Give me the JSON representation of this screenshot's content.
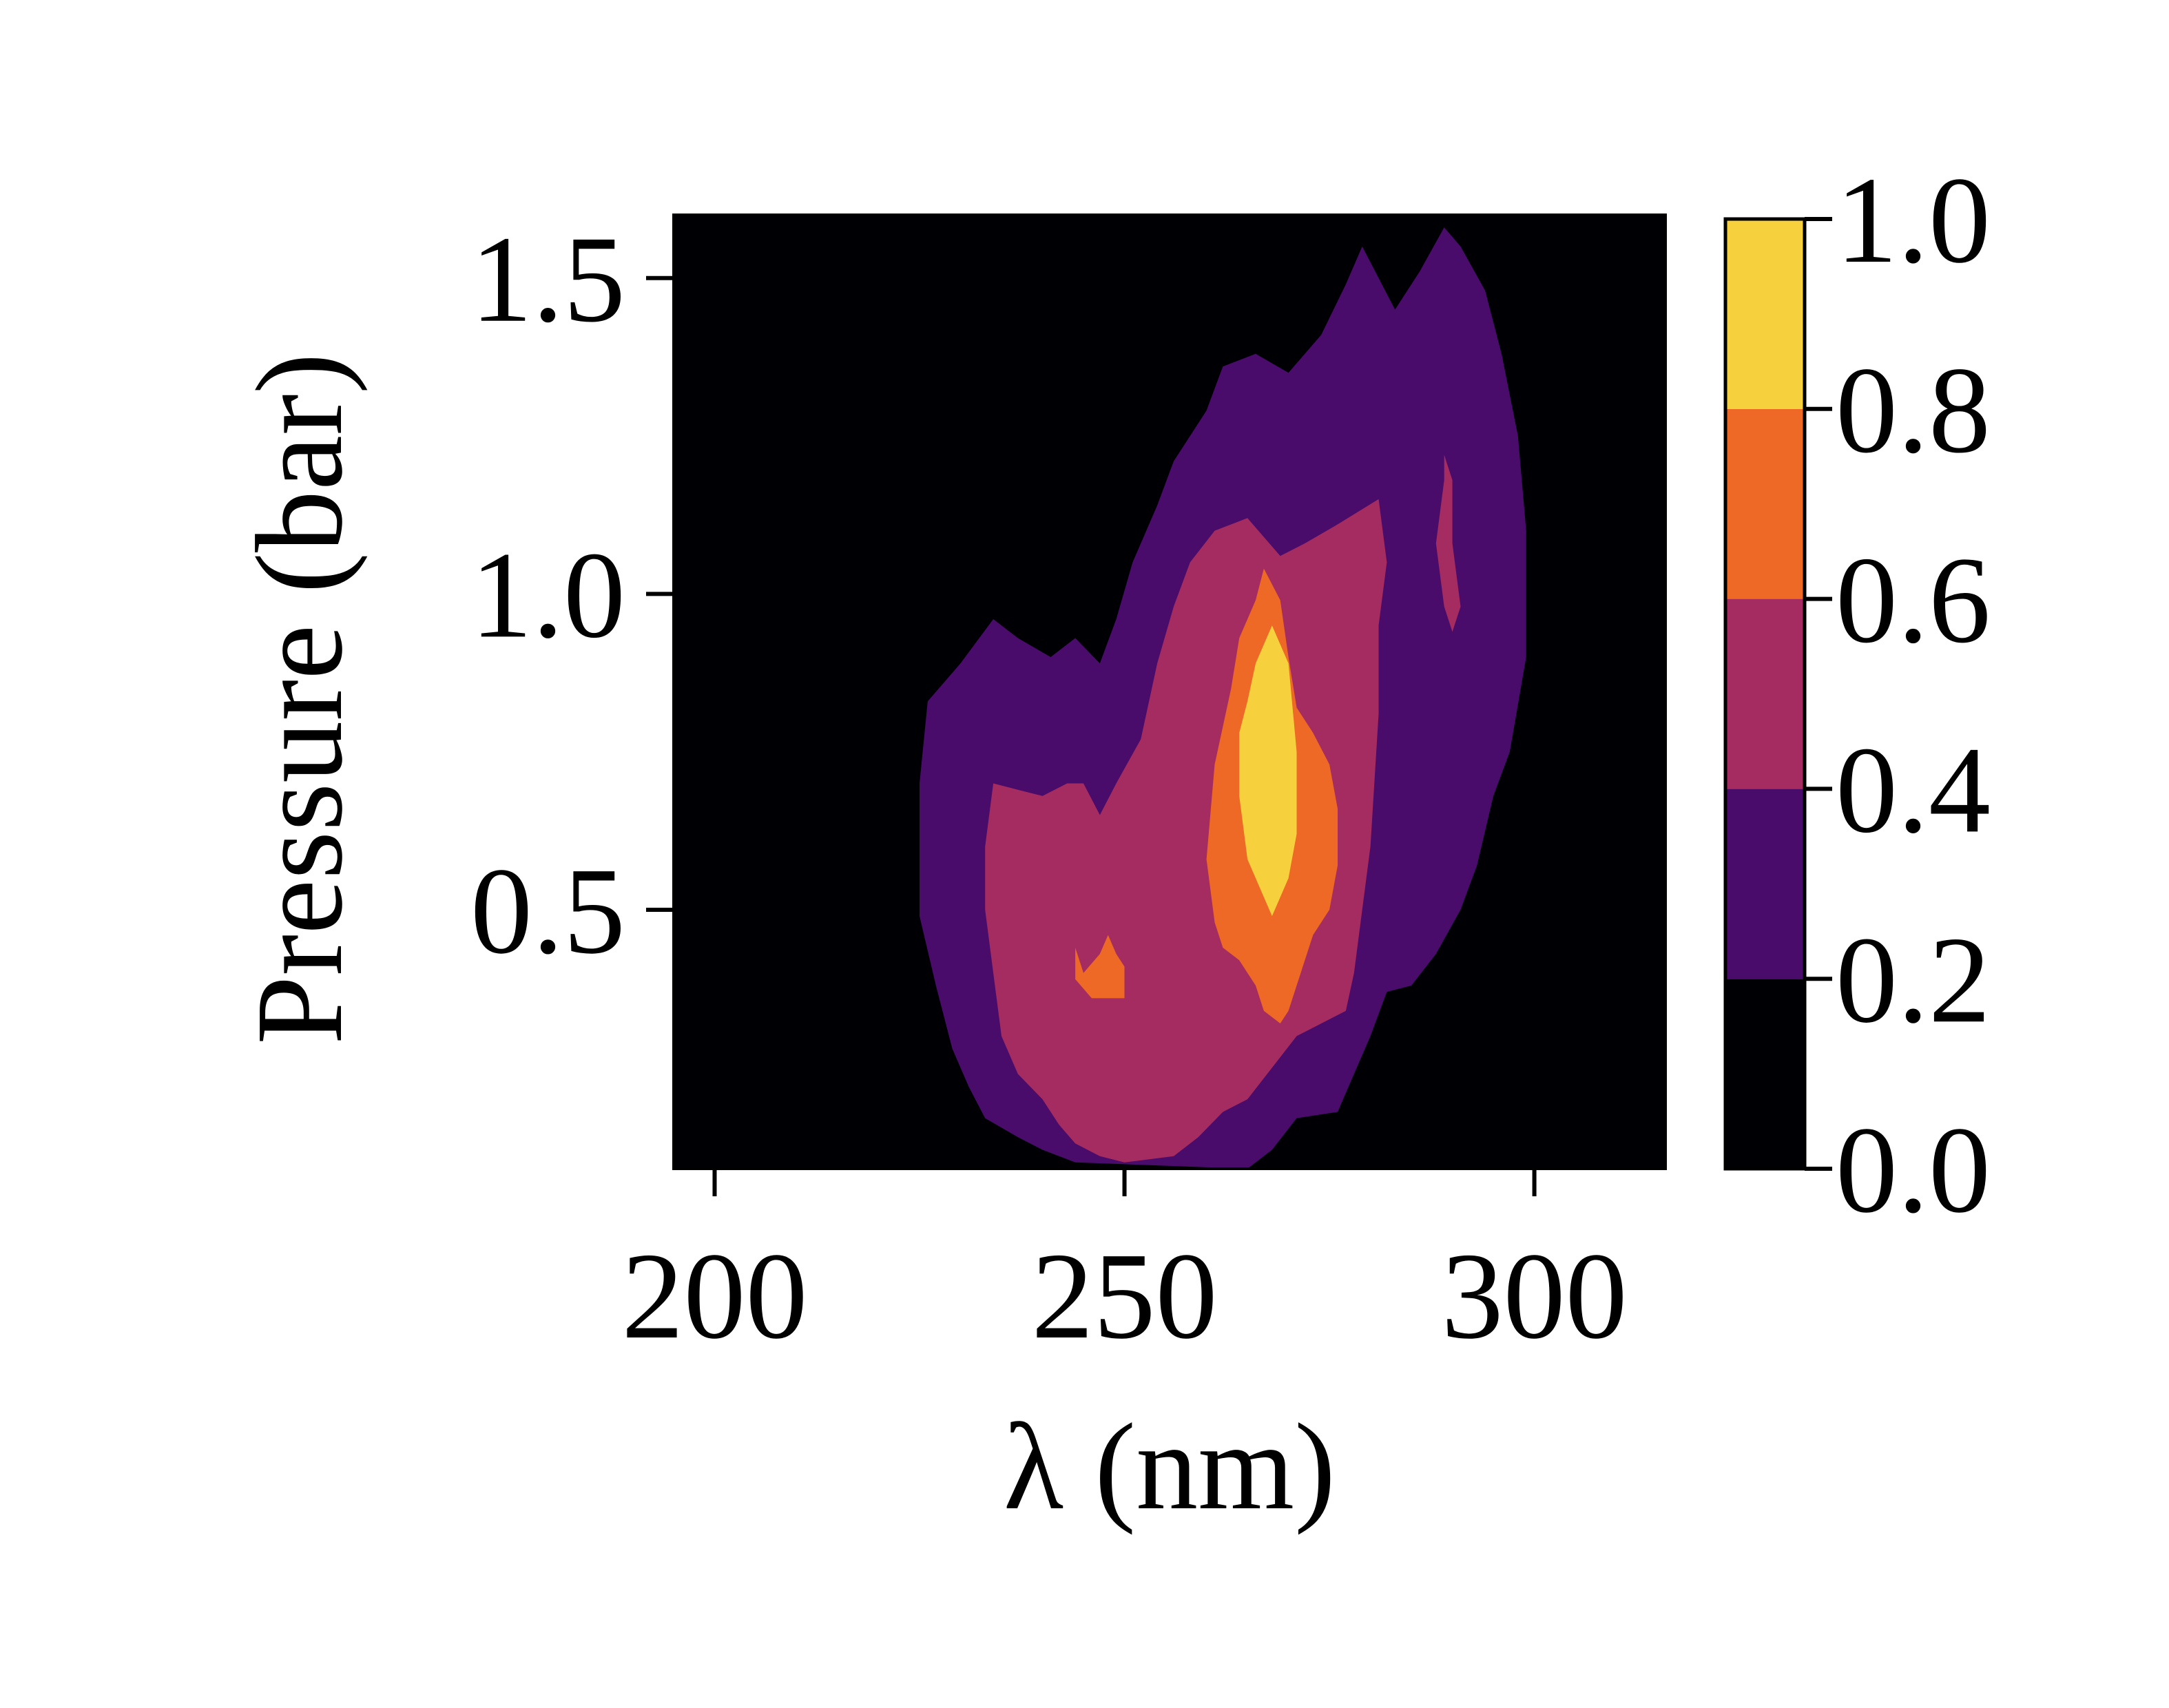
{
  "chart_data": {
    "type": "heatmap",
    "subtype": "filled-contour",
    "xlabel": "λ (nm)",
    "ylabel": "Pressure (bar)",
    "xlim": [
      195,
      316
    ],
    "ylim": [
      0.09,
      1.6
    ],
    "xticks": [
      200,
      250,
      300
    ],
    "xtick_labels": [
      "200",
      "250",
      "300"
    ],
    "yticks": [
      0.5,
      1.0,
      1.5
    ],
    "ytick_labels": [
      "0.5",
      "1.0",
      "1.5"
    ],
    "grid": false,
    "colormap": "inferno",
    "colorbar": {
      "levels": [
        0.0,
        0.2,
        0.4,
        0.6,
        0.8,
        1.0
      ],
      "tick_labels": [
        "0.0",
        "0.2",
        "0.4",
        "0.6",
        "0.8",
        "1.0"
      ],
      "colors": [
        "#000004",
        "#4a0c6b",
        "#a52c60",
        "#ed6925",
        "#f7d13d"
      ]
    },
    "contour_regions": [
      {
        "level_min": 0.2,
        "level_max": 0.4,
        "color": "#4a0c6b",
        "outline": [
          [
            226,
            0.83
          ],
          [
            230,
            0.89
          ],
          [
            234,
            0.96
          ],
          [
            237,
            0.93
          ],
          [
            241,
            0.9
          ],
          [
            244,
            0.93
          ],
          [
            247,
            0.89
          ],
          [
            249,
            0.96
          ],
          [
            251,
            1.05
          ],
          [
            254,
            1.14
          ],
          [
            256,
            1.21
          ],
          [
            258,
            1.25
          ],
          [
            260,
            1.29
          ],
          [
            262,
            1.36
          ],
          [
            266,
            1.38
          ],
          [
            270,
            1.35
          ],
          [
            274,
            1.41
          ],
          [
            277,
            1.49
          ],
          [
            279,
            1.55
          ],
          [
            281,
            1.5
          ],
          [
            283,
            1.45
          ],
          [
            286,
            1.51
          ],
          [
            289,
            1.58
          ],
          [
            291,
            1.55
          ],
          [
            294,
            1.48
          ],
          [
            296,
            1.38
          ],
          [
            298,
            1.25
          ],
          [
            299,
            1.1
          ],
          [
            299,
            0.9
          ],
          [
            297,
            0.75
          ],
          [
            295,
            0.68
          ],
          [
            293,
            0.57
          ],
          [
            291,
            0.5
          ],
          [
            288,
            0.43
          ],
          [
            285,
            0.38
          ],
          [
            282,
            0.37
          ],
          [
            280,
            0.3
          ],
          [
            276,
            0.18
          ],
          [
            271,
            0.17
          ],
          [
            268,
            0.12
          ],
          [
            265,
            0.09
          ],
          [
            244,
            0.1
          ],
          [
            240,
            0.12
          ],
          [
            237,
            0.14
          ],
          [
            233,
            0.17
          ],
          [
            231,
            0.22
          ],
          [
            229,
            0.28
          ],
          [
            227,
            0.38
          ],
          [
            225,
            0.49
          ],
          [
            225,
            0.6
          ],
          [
            225,
            0.7
          ]
        ]
      },
      {
        "level_min": 0.4,
        "level_max": 0.6,
        "color": "#a52c60",
        "outline": [
          [
            234,
            0.7
          ],
          [
            237,
            0.69
          ],
          [
            240,
            0.68
          ],
          [
            243,
            0.7
          ],
          [
            245,
            0.7
          ],
          [
            247,
            0.65
          ],
          [
            249,
            0.7
          ],
          [
            252,
            0.77
          ],
          [
            254,
            0.89
          ],
          [
            256,
            0.98
          ],
          [
            258,
            1.05
          ],
          [
            261,
            1.1
          ],
          [
            265,
            1.12
          ],
          [
            269,
            1.06
          ],
          [
            272,
            1.08
          ],
          [
            276,
            1.11
          ],
          [
            281,
            1.15
          ],
          [
            282,
            1.05
          ],
          [
            281,
            0.95
          ],
          [
            281,
            0.81
          ],
          [
            280,
            0.6
          ],
          [
            279,
            0.5
          ],
          [
            278,
            0.4
          ],
          [
            277,
            0.34
          ],
          [
            271,
            0.3
          ],
          [
            265,
            0.2
          ],
          [
            262,
            0.18
          ],
          [
            259,
            0.14
          ],
          [
            256,
            0.11
          ],
          [
            250,
            0.1
          ],
          [
            247,
            0.11
          ],
          [
            244,
            0.13
          ],
          [
            242,
            0.16
          ],
          [
            240,
            0.2
          ],
          [
            237,
            0.24
          ],
          [
            235,
            0.3
          ],
          [
            234,
            0.4
          ],
          [
            233,
            0.5
          ],
          [
            233,
            0.6
          ]
        ]
      },
      {
        "level_min": 0.4,
        "level_max": 0.6,
        "color": "#a52c60",
        "outline": [
          [
            289,
            1.22
          ],
          [
            290,
            1.18
          ],
          [
            290,
            1.08
          ],
          [
            291,
            0.98
          ],
          [
            290,
            0.94
          ],
          [
            289,
            0.98
          ],
          [
            288,
            1.08
          ],
          [
            289,
            1.18
          ]
        ]
      },
      {
        "level_min": 0.6,
        "level_max": 0.8,
        "color": "#ed6925",
        "outline": [
          [
            261,
            0.73
          ],
          [
            263,
            0.85
          ],
          [
            264,
            0.93
          ],
          [
            266,
            0.99
          ],
          [
            267,
            1.04
          ],
          [
            269,
            0.99
          ],
          [
            270,
            0.9
          ],
          [
            271,
            0.82
          ],
          [
            273,
            0.78
          ],
          [
            275,
            0.73
          ],
          [
            276,
            0.66
          ],
          [
            276,
            0.57
          ],
          [
            275,
            0.5
          ],
          [
            273,
            0.46
          ],
          [
            271,
            0.38
          ],
          [
            270,
            0.34
          ],
          [
            269,
            0.32
          ],
          [
            267,
            0.34
          ],
          [
            266,
            0.38
          ],
          [
            264,
            0.42
          ],
          [
            262,
            0.44
          ],
          [
            261,
            0.48
          ],
          [
            260,
            0.58
          ]
        ]
      },
      {
        "level_min": 0.6,
        "level_max": 0.8,
        "color": "#ed6925",
        "outline": [
          [
            244,
            0.44
          ],
          [
            245,
            0.4
          ],
          [
            247,
            0.43
          ],
          [
            248,
            0.46
          ],
          [
            249,
            0.43
          ],
          [
            250,
            0.41
          ],
          [
            250,
            0.36
          ],
          [
            246,
            0.36
          ],
          [
            244,
            0.39
          ]
        ]
      },
      {
        "level_min": 0.8,
        "level_max": 1.0,
        "color": "#f7d13d",
        "outline": [
          [
            265,
            0.83
          ],
          [
            266,
            0.89
          ],
          [
            268,
            0.95
          ],
          [
            270,
            0.89
          ],
          [
            271,
            0.75
          ],
          [
            271,
            0.62
          ],
          [
            270,
            0.55
          ],
          [
            268,
            0.49
          ],
          [
            267,
            0.52
          ],
          [
            265,
            0.58
          ],
          [
            264,
            0.68
          ],
          [
            264,
            0.78
          ]
        ]
      }
    ]
  }
}
